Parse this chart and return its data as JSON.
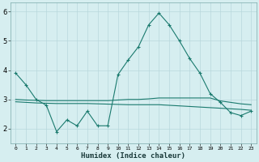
{
  "x": [
    0,
    1,
    2,
    3,
    4,
    5,
    6,
    7,
    8,
    9,
    10,
    11,
    12,
    13,
    14,
    15,
    16,
    17,
    18,
    19,
    20,
    21,
    22,
    23
  ],
  "line1": [
    3.9,
    3.5,
    3.0,
    2.8,
    1.9,
    2.3,
    2.1,
    2.6,
    2.1,
    2.1,
    3.85,
    4.35,
    4.8,
    5.55,
    5.95,
    5.55,
    5.0,
    4.4,
    3.9,
    3.2,
    2.9,
    2.55,
    2.45,
    2.6
  ],
  "line2": [
    3.0,
    2.98,
    2.97,
    2.96,
    2.96,
    2.96,
    2.96,
    2.96,
    2.96,
    2.96,
    2.98,
    3.0,
    3.0,
    3.02,
    3.05,
    3.05,
    3.05,
    3.05,
    3.05,
    3.05,
    2.95,
    2.9,
    2.85,
    2.82
  ],
  "line3": [
    2.92,
    2.9,
    2.88,
    2.87,
    2.86,
    2.86,
    2.86,
    2.86,
    2.85,
    2.84,
    2.83,
    2.82,
    2.82,
    2.82,
    2.82,
    2.8,
    2.78,
    2.76,
    2.74,
    2.72,
    2.7,
    2.68,
    2.66,
    2.63
  ],
  "line_color": "#1a7a6e",
  "bg_color": "#d6eef0",
  "grid_color": "#b8d8dc",
  "xlabel": "Humidex (Indice chaleur)",
  "ylim": [
    1.5,
    6.3
  ],
  "xlim": [
    -0.5,
    23.5
  ],
  "yticks": [
    2,
    3,
    4,
    5,
    6
  ],
  "ytick_labels": [
    "2",
    "3",
    "4",
    "5",
    "6"
  ]
}
